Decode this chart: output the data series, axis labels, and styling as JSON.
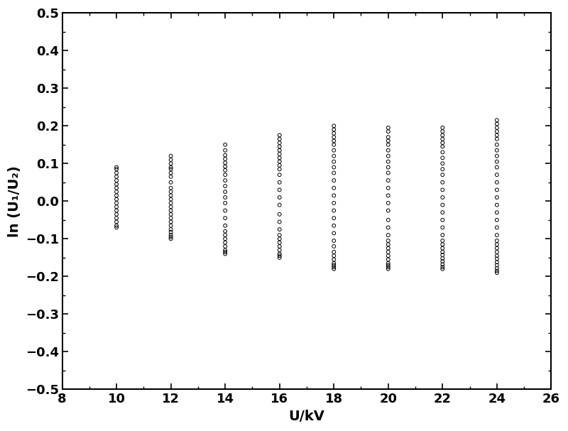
{
  "xlabel": "U/kV",
  "ylabel": "ln (U₁/U₂)",
  "xlim": [
    8,
    26
  ],
  "ylim": [
    -0.5,
    0.5
  ],
  "xticks": [
    8,
    10,
    12,
    14,
    16,
    18,
    20,
    22,
    24,
    26
  ],
  "yticks": [
    -0.5,
    -0.4,
    -0.3,
    -0.2,
    -0.1,
    0.0,
    0.1,
    0.2,
    0.3,
    0.4,
    0.5
  ],
  "background_color": "#ffffff",
  "marker_color": "black",
  "marker_size": 3.5,
  "voltages": [
    10,
    12,
    14,
    16,
    18,
    20,
    22,
    24
  ],
  "spreads": {
    "10": [
      -0.07,
      -0.065,
      -0.055,
      -0.045,
      -0.035,
      -0.025,
      -0.015,
      -0.005,
      0.005,
      0.015,
      0.025,
      0.035,
      0.045,
      0.055,
      0.065,
      0.075,
      0.085,
      0.09
    ],
    "12": [
      -0.1,
      -0.095,
      -0.09,
      -0.082,
      -0.075,
      -0.065,
      -0.055,
      -0.045,
      -0.035,
      -0.025,
      -0.015,
      -0.005,
      0.005,
      0.015,
      0.025,
      0.035,
      0.05,
      0.065,
      0.075,
      0.085,
      0.09,
      0.1,
      0.11,
      0.12
    ],
    "14": [
      -0.14,
      -0.135,
      -0.13,
      -0.12,
      -0.11,
      -0.1,
      -0.09,
      -0.08,
      -0.065,
      -0.045,
      -0.025,
      -0.005,
      0.01,
      0.025,
      0.04,
      0.055,
      0.07,
      0.082,
      0.092,
      0.102,
      0.112,
      0.122,
      0.135,
      0.15
    ],
    "16": [
      -0.15,
      -0.145,
      -0.14,
      -0.13,
      -0.12,
      -0.11,
      -0.1,
      -0.09,
      -0.075,
      -0.055,
      -0.035,
      -0.01,
      0.01,
      0.03,
      0.05,
      0.07,
      0.085,
      0.095,
      0.105,
      0.115,
      0.125,
      0.135,
      0.145,
      0.155,
      0.165,
      0.175
    ],
    "18": [
      -0.18,
      -0.175,
      -0.17,
      -0.165,
      -0.155,
      -0.145,
      -0.135,
      -0.12,
      -0.105,
      -0.085,
      -0.065,
      -0.045,
      -0.025,
      -0.005,
      0.015,
      0.035,
      0.055,
      0.075,
      0.09,
      0.105,
      0.12,
      0.135,
      0.15,
      0.16,
      0.17,
      0.18,
      0.19,
      0.2
    ],
    "20": [
      -0.18,
      -0.175,
      -0.17,
      -0.165,
      -0.155,
      -0.145,
      -0.135,
      -0.125,
      -0.115,
      -0.105,
      -0.09,
      -0.07,
      -0.05,
      -0.025,
      -0.005,
      0.015,
      0.035,
      0.055,
      0.075,
      0.09,
      0.105,
      0.12,
      0.135,
      0.15,
      0.16,
      0.17,
      0.185,
      0.195
    ],
    "22": [
      -0.18,
      -0.175,
      -0.168,
      -0.16,
      -0.152,
      -0.143,
      -0.135,
      -0.125,
      -0.115,
      -0.105,
      -0.09,
      -0.07,
      -0.05,
      -0.03,
      -0.01,
      0.01,
      0.03,
      0.05,
      0.07,
      0.085,
      0.1,
      0.115,
      0.13,
      0.145,
      0.155,
      0.165,
      0.175,
      0.185,
      0.195
    ],
    "24": [
      -0.19,
      -0.185,
      -0.178,
      -0.17,
      -0.162,
      -0.153,
      -0.145,
      -0.135,
      -0.125,
      -0.115,
      -0.105,
      -0.09,
      -0.07,
      -0.05,
      -0.03,
      -0.01,
      0.01,
      0.03,
      0.05,
      0.07,
      0.09,
      0.105,
      0.12,
      0.135,
      0.15,
      0.165,
      0.175,
      0.185,
      0.195,
      0.205,
      0.215
    ]
  }
}
